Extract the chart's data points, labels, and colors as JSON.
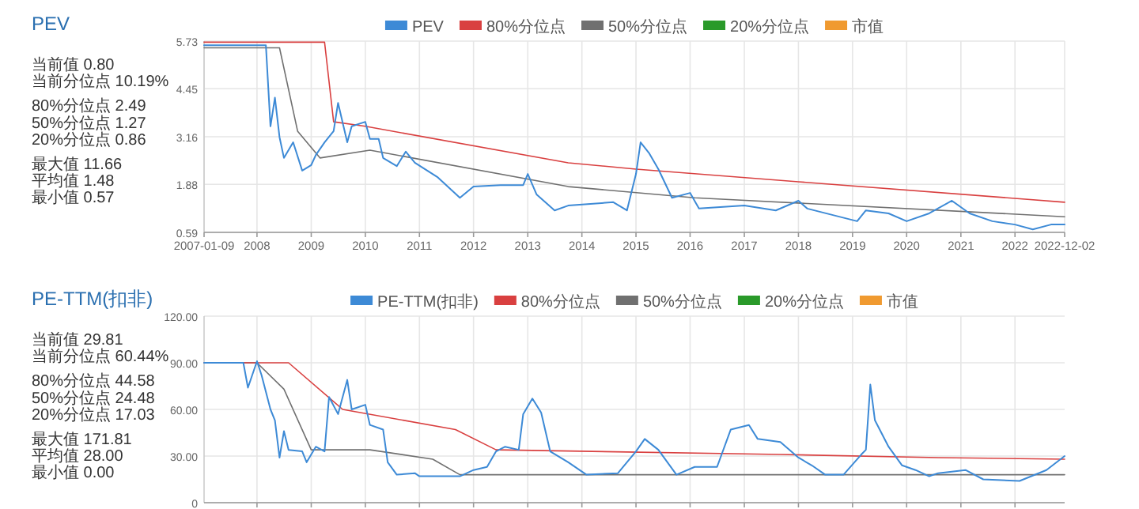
{
  "chart_data": [
    {
      "type": "line",
      "title": "PEV",
      "legend": "top",
      "grid": true,
      "annotations": [
        "当前值 0.80",
        "当前分位点 10.19%",
        "80%分位点 2.49",
        "50%分位点 1.27",
        "20%分位点 0.86",
        "最大值 11.66",
        "平均值 1.48",
        "最小值 0.57"
      ],
      "xlim": [
        "2007-01-09",
        "2022-12-02"
      ],
      "xticks": [
        {
          "value": "2007-01-09",
          "label": "2007-01-09"
        },
        {
          "value": "2008",
          "label": "2008"
        },
        {
          "value": "2009",
          "label": "2009"
        },
        {
          "value": "2010",
          "label": "2010"
        },
        {
          "value": "2011",
          "label": "2011"
        },
        {
          "value": "2012",
          "label": "2012"
        },
        {
          "value": "2013",
          "label": "2013"
        },
        {
          "value": "2014",
          "label": "2014"
        },
        {
          "value": "2015",
          "label": "2015"
        },
        {
          "value": "2016",
          "label": "2016"
        },
        {
          "value": "2017",
          "label": "2017"
        },
        {
          "value": "2018",
          "label": "2018"
        },
        {
          "value": "2019",
          "label": "2019"
        },
        {
          "value": "2020",
          "label": "2020"
        },
        {
          "value": "2021",
          "label": "2021"
        },
        {
          "value": "2022",
          "label": "2022"
        },
        {
          "value": "2022-12-02",
          "label": "2022-12-02"
        }
      ],
      "ylim": [
        0.59,
        5.73
      ],
      "yticks": [
        0.59,
        1.88,
        3.16,
        4.45,
        5.73
      ],
      "series": [
        {
          "name": "PEV",
          "color": "#3d8ad6",
          "x": [
            "2007-01-09",
            "2008-03",
            "2008-04",
            "2008-05",
            "2008-06",
            "2008-07",
            "2008-09",
            "2008-11",
            "2009-01",
            "2009-02",
            "2009-04",
            "2009-06",
            "2009-07",
            "2009-09",
            "2009-10",
            "2010-01",
            "2010-02",
            "2010-04",
            "2010-05",
            "2010-08",
            "2010-10",
            "2010-12",
            "2011-05",
            "2011-10",
            "2012-01",
            "2012-07",
            "2012-12",
            "2013-01",
            "2013-03",
            "2013-07",
            "2013-10",
            "2014-08",
            "2014-11",
            "2015-01",
            "2015-02",
            "2015-04",
            "2015-06",
            "2015-09",
            "2016-01",
            "2016-03",
            "2017-01",
            "2017-08",
            "2018-01",
            "2018-03",
            "2019-02",
            "2019-04",
            "2019-09",
            "2020-01",
            "2020-06",
            "2020-11",
            "2021-03",
            "2021-08",
            "2022-01",
            "2022-05",
            "2022-09",
            "2022-12-02"
          ],
          "values": [
            5.62,
            5.62,
            3.44,
            4.21,
            3.15,
            2.59,
            3.01,
            2.25,
            2.4,
            2.67,
            3.01,
            3.31,
            4.07,
            3.01,
            3.44,
            3.56,
            3.1,
            3.1,
            2.59,
            2.37,
            2.76,
            2.46,
            2.08,
            1.52,
            1.82,
            1.86,
            1.86,
            2.16,
            1.61,
            1.18,
            1.31,
            1.4,
            1.18,
            2.16,
            3.01,
            2.71,
            2.29,
            1.52,
            1.65,
            1.23,
            1.31,
            1.18,
            1.44,
            1.23,
            0.89,
            1.18,
            1.1,
            0.89,
            1.1,
            1.44,
            1.1,
            0.89,
            0.8,
            0.67,
            0.8,
            0.8
          ]
        },
        {
          "name": "80%分位点",
          "color": "#d94040",
          "x": [
            "2007-01-09",
            "2009-04",
            "2009-06",
            "2010-01",
            "2013-10",
            "2015-01",
            "2018-01",
            "2022-12-02"
          ],
          "values": [
            5.7,
            5.7,
            3.56,
            3.44,
            2.46,
            2.29,
            1.95,
            1.4
          ]
        },
        {
          "name": "50%分位点",
          "color": "#707070",
          "x": [
            "2007-01-09",
            "2008-06",
            "2008-10",
            "2009-03",
            "2010-02",
            "2013-10",
            "2016-02",
            "2022-12-02"
          ],
          "values": [
            5.55,
            5.55,
            3.31,
            2.59,
            2.8,
            1.82,
            1.52,
            1.01
          ]
        },
        {
          "name": "20%分位点",
          "color": "#2a9a2a"
        },
        {
          "name": "市值",
          "color": "#f09a30"
        }
      ]
    },
    {
      "type": "line",
      "title": "PE-TTM(扣非)",
      "legend": "top",
      "grid": true,
      "tick_labels": "y",
      "annotations": [
        "当前值 29.81",
        "当前分位点 60.44%",
        "80%分位点 44.58",
        "50%分位点 24.48",
        "20%分位点 17.03",
        "最大值 171.81",
        "平均值 28.00",
        "最小值 0.00"
      ],
      "xlim": [
        "2007-01-09",
        "2022-12-02"
      ],
      "xticks": [
        {
          "value": "2008",
          "label": null
        },
        {
          "value": "2009",
          "label": null
        },
        {
          "value": "2010",
          "label": null
        },
        {
          "value": "2011",
          "label": null
        },
        {
          "value": "2012",
          "label": null
        },
        {
          "value": "2013",
          "label": null
        },
        {
          "value": "2014",
          "label": null
        },
        {
          "value": "2015",
          "label": null
        },
        {
          "value": "2016",
          "label": null
        },
        {
          "value": "2017",
          "label": null
        },
        {
          "value": "2018",
          "label": null
        },
        {
          "value": "2019",
          "label": null
        },
        {
          "value": "2020",
          "label": null
        },
        {
          "value": "2021",
          "label": null
        },
        {
          "value": "2022",
          "label": null
        }
      ],
      "ylim": [
        0,
        120
      ],
      "yticks": [
        {
          "value": 0,
          "label": "0"
        },
        {
          "value": 30,
          "label": "30.00"
        },
        {
          "value": 60,
          "label": "60.00"
        },
        {
          "value": 90,
          "label": "90.00"
        },
        {
          "value": 120,
          "label": "120.00"
        }
      ],
      "series": [
        {
          "name": "PE-TTM(扣非)",
          "color": "#3d8ad6",
          "x": [
            "2007-01-09",
            "2007-10",
            "2007-11",
            "2008-01",
            "2008-02",
            "2008-04",
            "2008-05",
            "2008-06",
            "2008-07",
            "2008-08",
            "2008-11",
            "2008-12",
            "2009-02",
            "2009-04",
            "2009-05",
            "2009-07",
            "2009-09",
            "2009-10",
            "2010-01",
            "2010-02",
            "2010-05",
            "2010-06",
            "2010-08",
            "2010-12",
            "2011-01",
            "2011-06",
            "2011-10",
            "2012-01",
            "2012-04",
            "2012-06",
            "2012-08",
            "2012-11",
            "2012-12",
            "2013-02",
            "2013-04",
            "2013-06",
            "2013-10",
            "2014-02",
            "2014-09",
            "2015-01",
            "2015-03",
            "2015-06",
            "2015-10",
            "2016-02",
            "2016-07",
            "2016-10",
            "2017-02",
            "2017-04",
            "2017-09",
            "2018-01",
            "2018-04",
            "2018-07",
            "2018-11",
            "2019-03",
            "2019-04",
            "2019-05",
            "2019-06",
            "2019-09",
            "2019-12",
            "2020-03",
            "2020-06",
            "2020-08",
            "2021-02",
            "2021-06",
            "2022-02",
            "2022-08",
            "2022-12-02"
          ],
          "values": [
            90,
            90,
            74,
            91,
            82,
            60,
            53,
            29,
            46,
            34,
            33,
            26,
            36,
            33,
            68,
            57,
            79,
            60,
            63,
            50,
            47,
            26,
            18,
            19,
            17,
            17,
            17,
            21,
            23,
            33,
            36,
            34,
            57,
            67,
            58,
            33,
            26,
            18,
            19,
            33,
            41,
            34,
            18,
            23,
            23,
            47,
            50,
            41,
            39,
            29,
            24,
            18,
            18,
            31,
            34,
            76,
            53,
            36,
            24,
            21,
            17,
            19,
            21,
            15,
            14,
            21,
            30
          ]
        },
        {
          "name": "80%分位点",
          "color": "#d94040",
          "x": [
            "2007-01-09",
            "2008-08",
            "2009-08",
            "2011-09",
            "2012-06",
            "2017-09",
            "2020-08",
            "2022-12-02"
          ],
          "values": [
            90,
            90,
            60,
            47,
            34,
            31,
            29,
            28
          ]
        },
        {
          "name": "50%分位点",
          "color": "#707070",
          "x": [
            "2007-01-09",
            "2008-01",
            "2008-07",
            "2009-01",
            "2010-02",
            "2011-04",
            "2011-10",
            "2022-12-02"
          ],
          "values": [
            90,
            90,
            73,
            34,
            34,
            28,
            18,
            18
          ]
        },
        {
          "name": "20%分位点",
          "color": "#2a9a2a"
        },
        {
          "name": "市值",
          "color": "#f09a30"
        }
      ]
    }
  ]
}
